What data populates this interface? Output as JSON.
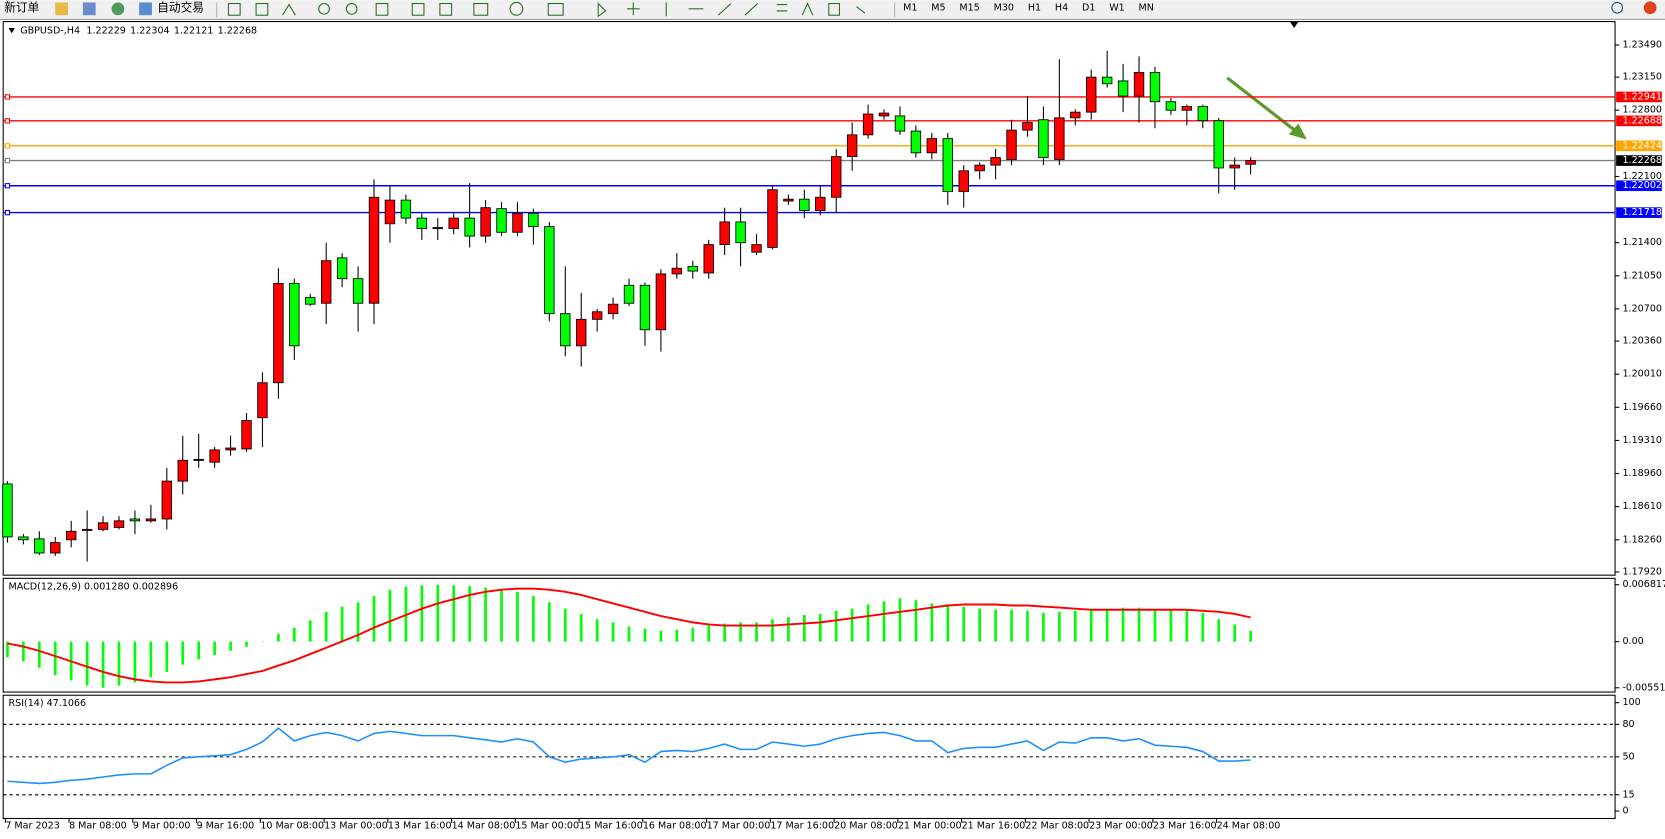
{
  "toolbar": {
    "new_order": "新订单",
    "auto_trading": "自动交易",
    "timeframes": [
      "M1",
      "M5",
      "M15",
      "M30",
      "H1",
      "H4",
      "D1",
      "W1",
      "MN"
    ]
  },
  "chart_data": [
    {
      "type": "candlestick",
      "title": "GBPUSD-,H4",
      "up_color": "#ff0000",
      "down_color": "#00ff00",
      "ylim": [
        1.17886,
        1.23726
      ],
      "yticks": [
        {
          "value": 1.2349,
          "label": "1.23490"
        },
        {
          "value": 1.2315,
          "label": "1.23150"
        },
        {
          "value": 1.228,
          "label": "1.22800"
        },
        {
          "value": 1.221,
          "label": "1.22100"
        },
        {
          "value": 1.214,
          "label": "1.21400"
        },
        {
          "value": 1.2105,
          "label": "1.21050"
        },
        {
          "value": 1.207,
          "label": "1.20700"
        },
        {
          "value": 1.2036,
          "label": "1.20360"
        },
        {
          "value": 1.2001,
          "label": "1.20010"
        },
        {
          "value": 1.1966,
          "label": "1.19660"
        },
        {
          "value": 1.1931,
          "label": "1.19310"
        },
        {
          "value": 1.1896,
          "label": "1.18960"
        },
        {
          "value": 1.1861,
          "label": "1.18610"
        },
        {
          "value": 1.1826,
          "label": "1.18260"
        },
        {
          "value": 1.1792,
          "label": "1.17920"
        }
      ],
      "levels": [
        {
          "value": 1.22941,
          "color": "#ff0000"
        },
        {
          "value": 1.22688,
          "color": "#ff0000"
        },
        {
          "value": 1.22424,
          "color": "#ffa500"
        },
        {
          "value": 1.22268,
          "color": "#808080",
          "box": "#000000"
        },
        {
          "value": 1.22002,
          "color": "#0000ff"
        },
        {
          "value": 1.21718,
          "color": "#0000ff"
        }
      ],
      "categories": [
        "7 Mar 2023",
        null,
        null,
        null,
        "8 Mar 08:00",
        null,
        null,
        null,
        "9 Mar 00:00",
        null,
        null,
        null,
        "9 Mar 16:00",
        null,
        null,
        null,
        "10 Mar 08:00",
        null,
        null,
        null,
        "13 Mar 00:00",
        null,
        null,
        null,
        "13 Mar 16:00",
        null,
        null,
        null,
        "14 Mar 08:00",
        null,
        null,
        null,
        "15 Mar 00:00",
        null,
        null,
        null,
        "15 Mar 16:00",
        null,
        null,
        null,
        "16 Mar 08:00",
        null,
        null,
        null,
        "17 Mar 00:00",
        null,
        null,
        null,
        "17 Mar 16:00",
        null,
        null,
        null,
        "20 Mar 08:00",
        null,
        null,
        null,
        "21 Mar 00:00",
        null,
        null,
        null,
        "21 Mar 16:00",
        null,
        null,
        null,
        "22 Mar 08:00",
        null,
        null,
        null,
        "23 Mar 00:00",
        null,
        null,
        null,
        "23 Mar 16:00",
        null,
        null,
        null,
        "24 Mar 08:00",
        null,
        null
      ],
      "ohlc": [
        [
          1.1885,
          1.1888,
          1.1823,
          1.1829
        ],
        [
          1.1829,
          1.1832,
          1.1821,
          1.1826
        ],
        [
          1.1827,
          1.1835,
          1.181,
          1.1812
        ],
        [
          1.1812,
          1.1829,
          1.1809,
          1.1823
        ],
        [
          1.1826,
          1.1846,
          1.1818,
          1.1835
        ],
        [
          1.1836,
          1.1857,
          1.1803,
          1.1837
        ],
        [
          1.1837,
          1.1851,
          1.1835,
          1.1844
        ],
        [
          1.1839,
          1.1851,
          1.1837,
          1.1846
        ],
        [
          1.1848,
          1.1857,
          1.1832,
          1.1846
        ],
        [
          1.1846,
          1.1863,
          1.1844,
          1.1848
        ],
        [
          1.1848,
          1.1902,
          1.1837,
          1.1888
        ],
        [
          1.1888,
          1.1936,
          1.1874,
          1.191
        ],
        [
          1.191,
          1.1938,
          1.1902,
          1.1911
        ],
        [
          1.1908,
          1.1924,
          1.1902,
          1.1921
        ],
        [
          1.1921,
          1.1936,
          1.1915,
          1.1923
        ],
        [
          1.1922,
          1.196,
          1.1919,
          1.1952
        ],
        [
          1.1955,
          1.2003,
          1.1924,
          1.1992
        ],
        [
          1.1992,
          1.2113,
          1.1975,
          1.2097
        ],
        [
          1.2097,
          1.2102,
          1.2016,
          1.2031
        ],
        [
          1.2082,
          1.2086,
          1.2073,
          1.2075
        ],
        [
          1.2076,
          1.214,
          1.2054,
          1.2121
        ],
        [
          1.2124,
          1.2129,
          1.2093,
          1.2102
        ],
        [
          1.2102,
          1.2115,
          1.2046,
          1.2076
        ],
        [
          1.2076,
          1.2207,
          1.2054,
          1.2188
        ],
        [
          1.216,
          1.22,
          1.214,
          1.2185
        ],
        [
          1.2185,
          1.2191,
          1.216,
          1.2166
        ],
        [
          1.2166,
          1.2171,
          1.2143,
          1.2155
        ],
        [
          1.2155,
          1.2166,
          1.2143,
          1.2156
        ],
        [
          1.2155,
          1.2171,
          1.2149,
          1.2166
        ],
        [
          1.2166,
          1.2203,
          1.2135,
          1.2147
        ],
        [
          1.2147,
          1.2185,
          1.214,
          1.2177
        ],
        [
          1.2176,
          1.2183,
          1.2147,
          1.2151
        ],
        [
          1.2151,
          1.2183,
          1.2147,
          1.2171
        ],
        [
          1.2171,
          1.2176,
          1.2138,
          1.2157
        ],
        [
          1.2157,
          1.2162,
          1.2057,
          1.2065
        ],
        [
          1.2065,
          1.2115,
          1.202,
          1.2031
        ],
        [
          1.2031,
          1.2087,
          1.2009,
          1.2059
        ],
        [
          1.2059,
          1.207,
          1.2046,
          1.2067
        ],
        [
          1.2065,
          1.2082,
          1.2059,
          1.2075
        ],
        [
          1.2095,
          1.2102,
          1.2073,
          1.2076
        ],
        [
          1.2095,
          1.2098,
          1.2031,
          1.2048
        ],
        [
          1.2048,
          1.2112,
          1.2025,
          1.2107
        ],
        [
          1.2107,
          1.2129,
          1.2102,
          1.2113
        ],
        [
          1.2115,
          1.2121,
          1.2102,
          1.211
        ],
        [
          1.2108,
          1.2143,
          1.2102,
          1.2138
        ],
        [
          1.2138,
          1.2177,
          1.2127,
          1.2162
        ],
        [
          1.2162,
          1.2177,
          1.2115,
          1.214
        ],
        [
          1.213,
          1.2149,
          1.2127,
          1.2138
        ],
        [
          1.2135,
          1.22,
          1.2133,
          1.2196
        ],
        [
          1.2184,
          1.2191,
          1.218,
          1.2186
        ],
        [
          1.2186,
          1.2196,
          1.2166,
          1.2174
        ],
        [
          1.2174,
          1.22,
          1.2169,
          1.2188
        ],
        [
          1.2188,
          1.2239,
          1.2171,
          1.2231
        ],
        [
          1.2231,
          1.2267,
          1.2216,
          1.2254
        ],
        [
          1.2254,
          1.2286,
          1.225,
          1.2276
        ],
        [
          1.2274,
          1.2281,
          1.227,
          1.2277
        ],
        [
          1.2274,
          1.2284,
          1.2254,
          1.2258
        ],
        [
          1.2258,
          1.2264,
          1.223,
          1.2235
        ],
        [
          1.2235,
          1.2256,
          1.2228,
          1.225
        ],
        [
          1.225,
          1.2256,
          1.218,
          1.2194
        ],
        [
          1.2194,
          1.2222,
          1.2177,
          1.2216
        ],
        [
          1.2216,
          1.2225,
          1.2207,
          1.2222
        ],
        [
          1.2222,
          1.2239,
          1.2207,
          1.223
        ],
        [
          1.2228,
          1.227,
          1.2222,
          1.2259
        ],
        [
          1.2259,
          1.2295,
          1.2252,
          1.2267
        ],
        [
          1.227,
          1.2284,
          1.2222,
          1.223
        ],
        [
          1.2228,
          1.2334,
          1.2222,
          1.2272
        ],
        [
          1.2272,
          1.2281,
          1.2264,
          1.2278
        ],
        [
          1.2278,
          1.2323,
          1.227,
          1.2315
        ],
        [
          1.2315,
          1.2343,
          1.2304,
          1.2308
        ],
        [
          1.2311,
          1.2329,
          1.2278,
          1.2295
        ],
        [
          1.2295,
          1.2337,
          1.2267,
          1.232
        ],
        [
          1.232,
          1.2326,
          1.2261,
          1.2289
        ],
        [
          1.2289,
          1.2293,
          1.2275,
          1.228
        ],
        [
          1.228,
          1.2286,
          1.2264,
          1.2284
        ],
        [
          1.2284,
          1.2286,
          1.2261,
          1.2269
        ],
        [
          1.2269,
          1.2272,
          1.2192,
          1.2219
        ],
        [
          1.2219,
          1.223,
          1.2196,
          1.2222
        ],
        [
          1.22229,
          1.22304,
          1.22121,
          1.22268
        ]
      ]
    },
    {
      "type": "macd",
      "title": "MACD(12,26,9) 0.001280 0.002896",
      "ylim": [
        -0.005518,
        0.006817
      ],
      "yticks": [
        0.006817,
        {
          "value": 0,
          "label": "0.00"
        },
        -0.005518
      ],
      "series": [
        {
          "style": "histogram",
          "color": "#00ff00",
          "values": [
            -0.00186,
            -0.00236,
            -0.00312,
            -0.004,
            -0.00463,
            -0.00526,
            -0.00551,
            -0.00526,
            -0.00488,
            -0.00425,
            -0.00362,
            -0.00274,
            -0.00211,
            -0.0016,
            -0.0011,
            -0.00059,
            4e-05,
            0.00092,
            0.00168,
            0.00256,
            0.00357,
            0.0042,
            0.00471,
            0.00546,
            0.00622,
            0.0066,
            0.00675,
            0.0068,
            0.00675,
            0.00665,
            0.00647,
            0.00622,
            0.00597,
            0.00546,
            0.00471,
            0.00395,
            0.00332,
            0.00269,
            0.00231,
            0.0018,
            0.00155,
            0.0013,
            0.00143,
            0.00168,
            0.00193,
            0.00218,
            0.00231,
            0.00231,
            0.00269,
            0.00294,
            0.00319,
            0.00332,
            0.0037,
            0.00395,
            0.00445,
            0.00483,
            0.00521,
            0.00496,
            0.00458,
            0.00445,
            0.0042,
            0.00395,
            0.00382,
            0.00382,
            0.0037,
            0.00345,
            0.00357,
            0.0037,
            0.00395,
            0.00395,
            0.00408,
            0.00408,
            0.00395,
            0.00382,
            0.0037,
            0.00345,
            0.00269,
            0.00206,
            0.00128
          ]
        },
        {
          "style": "line",
          "color": "#ff0000",
          "values": [
            -0.00021,
            -0.00059,
            -0.0011,
            -0.00173,
            -0.00236,
            -0.00299,
            -0.00362,
            -0.00413,
            -0.00451,
            -0.00476,
            -0.00488,
            -0.00488,
            -0.00476,
            -0.00451,
            -0.00425,
            -0.00387,
            -0.0035,
            -0.00286,
            -0.00223,
            -0.00148,
            -0.00072,
            4e-05,
            0.0008,
            0.00168,
            0.00244,
            0.00319,
            0.00395,
            0.00458,
            0.00509,
            0.00559,
            0.00597,
            0.00622,
            0.00635,
            0.00635,
            0.00622,
            0.00597,
            0.00559,
            0.00509,
            0.00458,
            0.00408,
            0.00357,
            0.00307,
            0.00269,
            0.00231,
            0.00206,
            0.00193,
            0.00193,
            0.00193,
            0.00193,
            0.00206,
            0.00218,
            0.00231,
            0.00256,
            0.00281,
            0.00307,
            0.00332,
            0.00357,
            0.00382,
            0.00408,
            0.00433,
            0.00445,
            0.00445,
            0.00445,
            0.00433,
            0.00433,
            0.0042,
            0.00408,
            0.00395,
            0.00382,
            0.00382,
            0.00382,
            0.00382,
            0.00382,
            0.00382,
            0.00382,
            0.0037,
            0.00357,
            0.00332,
            0.002896
          ]
        }
      ]
    },
    {
      "type": "line",
      "title": "RSI(14) 47.1066",
      "ylim": [
        0,
        100
      ],
      "yticks": [
        100,
        80,
        50,
        15,
        0
      ],
      "levels": [
        80,
        50,
        15
      ],
      "color": "#1e90ff",
      "values": [
        27.5,
        26.5,
        25.5,
        26.5,
        28.4,
        29.4,
        31.4,
        33.3,
        34.3,
        34.3,
        42.2,
        49.0,
        50.0,
        51.0,
        52.0,
        56.9,
        63.7,
        76.5,
        64.7,
        69.6,
        72.5,
        69.6,
        64.7,
        71.6,
        73.5,
        71.6,
        69.6,
        69.6,
        69.6,
        67.6,
        65.7,
        63.7,
        66.7,
        63.7,
        50.0,
        45.1,
        48.0,
        49.0,
        50.0,
        52.0,
        45.1,
        54.9,
        55.9,
        54.9,
        57.8,
        61.8,
        56.9,
        56.9,
        63.7,
        61.8,
        59.8,
        61.8,
        66.7,
        69.6,
        71.6,
        72.5,
        69.6,
        64.7,
        64.7,
        53.9,
        57.8,
        58.8,
        58.8,
        61.8,
        64.7,
        55.9,
        63.7,
        62.7,
        67.6,
        67.6,
        64.7,
        66.7,
        60.8,
        59.8,
        58.8,
        54.9,
        46.1,
        46.1,
        47.1066
      ]
    }
  ]
}
